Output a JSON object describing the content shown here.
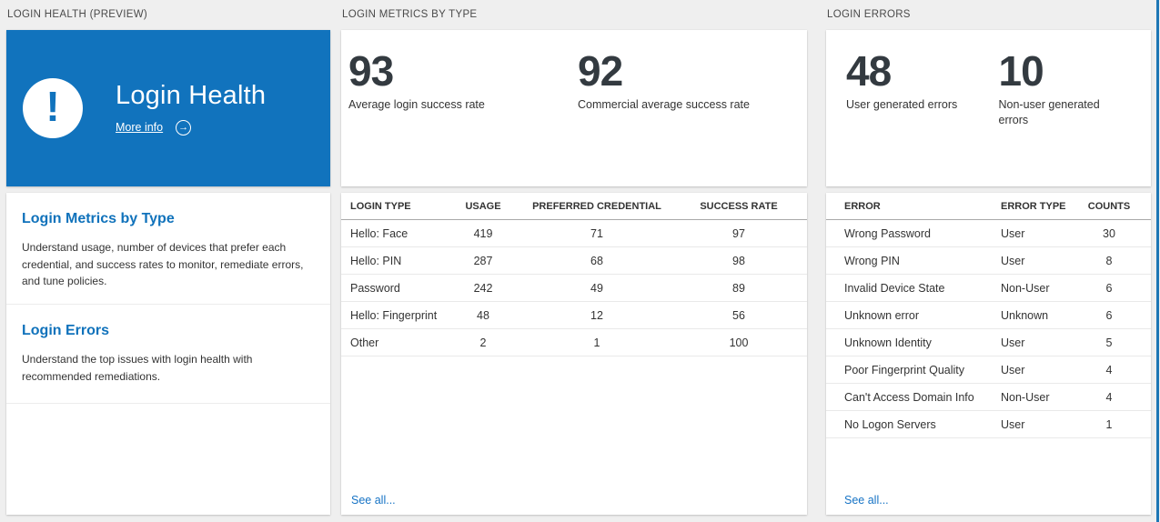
{
  "accent_blue": "#1173bd",
  "edge_line_color": "#1d76b5",
  "login_health": {
    "section_title": "LOGIN HEALTH (PREVIEW)",
    "hero": {
      "title": "Login Health",
      "more_info_label": "More info",
      "icon": "exclamation-icon",
      "arrow_icon": "→"
    },
    "sections": [
      {
        "title": "Login Metrics by Type",
        "description": "Understand usage, number of devices that prefer each credential, and success rates to monitor, remediate errors, and tune policies."
      },
      {
        "title": "Login Errors",
        "description": "Understand the top issues with login health with recommended remediations."
      }
    ]
  },
  "login_metrics": {
    "section_title": "LOGIN METRICS BY TYPE",
    "metrics": [
      {
        "value": "93",
        "label": "Average login success rate"
      },
      {
        "value": "92",
        "label": "Commercial average success rate"
      }
    ],
    "table": {
      "headers": [
        "LOGIN TYPE",
        "USAGE",
        "PREFERRED CREDENTIAL",
        "SUCCESS RATE"
      ],
      "rows": [
        [
          "Hello: Face",
          "419",
          "71",
          "97"
        ],
        [
          "Hello: PIN",
          "287",
          "68",
          "98"
        ],
        [
          "Password",
          "242",
          "49",
          "89"
        ],
        [
          "Hello: Fingerprint",
          "48",
          "12",
          "56"
        ],
        [
          "Other",
          "2",
          "1",
          "100"
        ]
      ]
    },
    "see_all_label": "See all..."
  },
  "login_errors": {
    "section_title": "LOGIN ERRORS",
    "metrics": [
      {
        "value": "48",
        "label": "User generated errors"
      },
      {
        "value": "10",
        "label": "Non-user generated errors"
      }
    ],
    "table": {
      "headers": [
        "ERROR",
        "ERROR TYPE",
        "COUNTS"
      ],
      "rows": [
        [
          "Wrong Password",
          "User",
          "30"
        ],
        [
          "Wrong PIN",
          "User",
          "8"
        ],
        [
          "Invalid Device State",
          "Non-User",
          "6"
        ],
        [
          "Unknown error",
          "Unknown",
          "6"
        ],
        [
          "Unknown Identity",
          "User",
          "5"
        ],
        [
          "Poor Fingerprint Quality",
          "User",
          "4"
        ],
        [
          "Can't Access Domain Info",
          "Non-User",
          "4"
        ],
        [
          "No Logon Servers",
          "User",
          "1"
        ]
      ]
    },
    "see_all_label": "See all..."
  }
}
